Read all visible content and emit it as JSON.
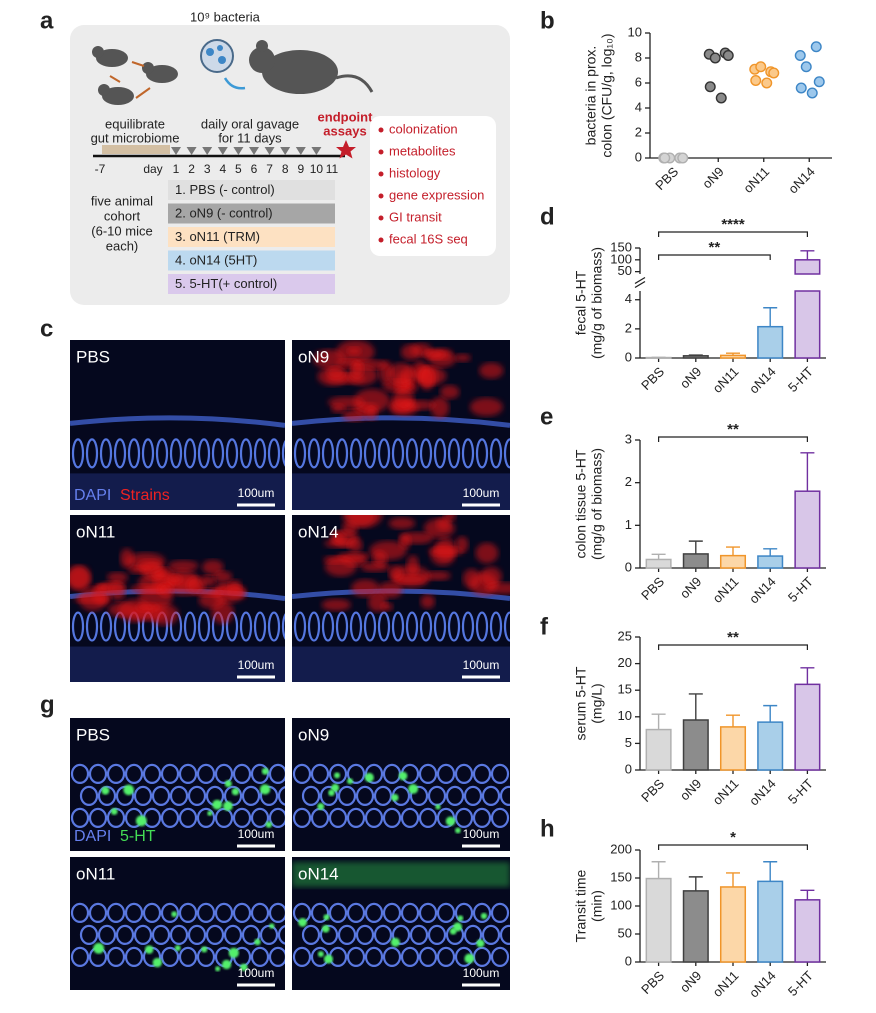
{
  "panel_labels": [
    "a",
    "b",
    "c",
    "d",
    "e",
    "f",
    "g",
    "h"
  ],
  "diagram": {
    "bacteria": "10⁹ bacteria",
    "equilibrate": [
      "equilibrate",
      "gut microbiome"
    ],
    "gavage": [
      "daily oral gavage",
      "for 11 days"
    ],
    "endpoint": [
      "endpoint",
      "assays"
    ],
    "timeline": {
      "start": "-7",
      "day": "day",
      "days": [
        "1",
        "2",
        "3",
        "4",
        "5",
        "6",
        "7",
        "8",
        "9",
        "10",
        "11"
      ]
    },
    "cohort": [
      "five animal",
      "cohort",
      "(6-10 mice",
      "each)"
    ],
    "groups": [
      "1. PBS (- control)",
      "2. oN9 (- control)",
      "3. oN11 (TRM)",
      "4. oN14 (5HT)",
      "5. 5-HT(+ control)"
    ],
    "assays": [
      "colonization",
      "metabolites",
      "histology",
      "gene expression",
      "GI transit",
      "fecal 16S seq"
    ]
  },
  "images": {
    "c": {
      "labels": [
        "PBS",
        "oN9",
        "oN11",
        "oN14"
      ],
      "stains": [
        "DAPI",
        "Strains"
      ],
      "scale_bar": "100um"
    },
    "g": {
      "labels": [
        "PBS",
        "oN9",
        "oN11",
        "oN14"
      ],
      "stains": [
        "DAPI",
        "5-HT"
      ],
      "scale_bar": "100um"
    }
  },
  "chart_data": [
    {
      "type": "strip",
      "ylabel": [
        "bacteria in prox.",
        "colon (CFU/g, log₁₀)"
      ],
      "categories": [
        "PBS",
        "oN9",
        "oN11",
        "oN14"
      ],
      "values": [
        [
          0,
          0,
          0,
          0,
          0
        ],
        [
          8.3,
          8.4,
          8.0,
          8.2,
          5.7,
          4.8
        ],
        [
          7.1,
          6.9,
          7.3,
          6.8,
          6.2,
          6.0
        ],
        [
          8.2,
          8.9,
          7.3,
          6.1,
          5.6,
          5.2
        ]
      ],
      "colors": [
        "#d4d4d4",
        "#8a8a8a",
        "#fbc98a",
        "#9dc8ec"
      ],
      "edge_colors": [
        "#b0b0b0",
        "#333333",
        "#f0952a",
        "#3d86c6"
      ],
      "ylim": [
        0,
        10
      ],
      "yticks": [
        0,
        2,
        4,
        6,
        8,
        10
      ]
    },
    {
      "type": "bar",
      "ylabel": [
        "fecal 5-HT",
        "(mg/g of biomass)"
      ],
      "categories": [
        "PBS",
        "oN9",
        "oN11",
        "oN14",
        "5-HT"
      ],
      "values": [
        0.03,
        0.15,
        0.18,
        2.15,
        100
      ],
      "errors": [
        0.02,
        0.05,
        0.15,
        1.3,
        38
      ],
      "colors": [
        "#d9d9d9",
        "#8c8c8c",
        "#fcd7a8",
        "#a9cfe9",
        "#d8c6e8"
      ],
      "edge_colors": [
        "#b0b0b0",
        "#404040",
        "#f0952a",
        "#3d86c6",
        "#7030a0"
      ],
      "axis_break": true,
      "ylim": [
        0,
        4.6
      ],
      "yticks": [
        0,
        2,
        4
      ],
      "ylim_upper": [
        40,
        150
      ],
      "yticks_upper": [
        50,
        100,
        150
      ],
      "significance": [
        {
          "from": 0,
          "to": 3,
          "label": "**"
        },
        {
          "from": 0,
          "to": 4,
          "label": "****"
        }
      ]
    },
    {
      "type": "bar",
      "ylabel": [
        "colon tissue 5-HT",
        "(mg/g of biomass)"
      ],
      "categories": [
        "PBS",
        "oN9",
        "oN11",
        "oN14",
        "5-HT"
      ],
      "values": [
        0.2,
        0.33,
        0.29,
        0.28,
        1.8
      ],
      "errors": [
        0.12,
        0.3,
        0.2,
        0.17,
        0.9
      ],
      "colors": [
        "#d9d9d9",
        "#8c8c8c",
        "#fcd7a8",
        "#a9cfe9",
        "#d8c6e8"
      ],
      "edge_colors": [
        "#b0b0b0",
        "#404040",
        "#f0952a",
        "#3d86c6",
        "#7030a0"
      ],
      "ylim": [
        0,
        3
      ],
      "yticks": [
        0,
        1,
        2,
        3
      ],
      "significance": [
        {
          "from": 0,
          "to": 4,
          "label": "**"
        }
      ]
    },
    {
      "type": "bar",
      "ylabel": [
        "serum 5-HT",
        "(mg/L)"
      ],
      "categories": [
        "PBS",
        "oN9",
        "oN11",
        "oN14",
        "5-HT"
      ],
      "values": [
        7.6,
        9.4,
        8.1,
        9.0,
        16.1
      ],
      "errors": [
        2.9,
        4.9,
        2.2,
        3.1,
        3.1
      ],
      "colors": [
        "#d9d9d9",
        "#8c8c8c",
        "#fcd7a8",
        "#a9cfe9",
        "#d8c6e8"
      ],
      "edge_colors": [
        "#b0b0b0",
        "#404040",
        "#f0952a",
        "#3d86c6",
        "#7030a0"
      ],
      "ylim": [
        0,
        25
      ],
      "yticks": [
        0,
        5,
        10,
        15,
        20,
        25
      ],
      "significance": [
        {
          "from": 0,
          "to": 4,
          "label": "**"
        }
      ]
    },
    {
      "type": "bar",
      "ylabel": [
        "Transit time",
        "(min)"
      ],
      "categories": [
        "PBS",
        "oN9",
        "oN11",
        "oN14",
        "5-HT"
      ],
      "values": [
        149,
        127,
        134,
        144,
        111
      ],
      "errors": [
        30,
        25,
        25,
        35,
        17
      ],
      "colors": [
        "#d9d9d9",
        "#8c8c8c",
        "#fcd7a8",
        "#a9cfe9",
        "#d8c6e8"
      ],
      "edge_colors": [
        "#b0b0b0",
        "#404040",
        "#f0952a",
        "#3d86c6",
        "#7030a0"
      ],
      "ylim": [
        0,
        200
      ],
      "yticks": [
        0,
        50,
        100,
        150,
        200
      ],
      "significance": [
        {
          "from": 0,
          "to": 4,
          "label": "*"
        }
      ]
    }
  ]
}
